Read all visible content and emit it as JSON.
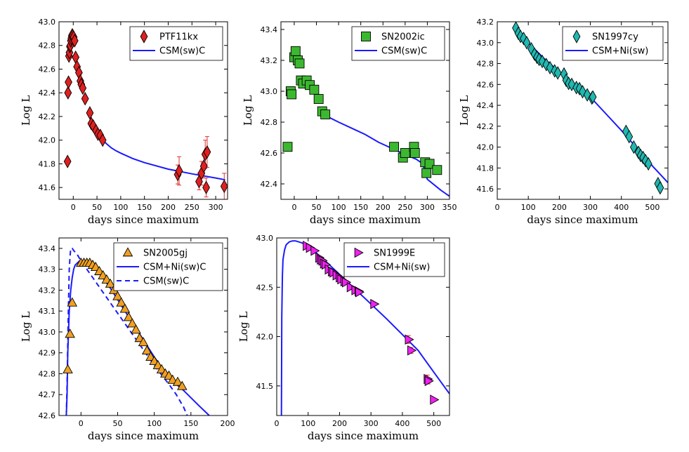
{
  "colors": {
    "model": "#1a1aff",
    "errorbar": "#e03030"
  },
  "chart_data": [
    {
      "type": "scatter",
      "id": "ptf11kx",
      "xlabel": "days since maximum",
      "ylabel": "Log L",
      "xlim": [
        -30,
        325
      ],
      "ylim": [
        41.5,
        43.0
      ],
      "xticks": [
        0,
        50,
        100,
        150,
        200,
        250,
        300
      ],
      "yticks": [
        41.6,
        41.8,
        42.0,
        42.2,
        42.4,
        42.6,
        42.8,
        43.0
      ],
      "ytick_decimals": 1,
      "legend_position": "top-right",
      "series": [
        {
          "name": "PTF11kx",
          "kind": "points",
          "marker": "diamond",
          "color": "#e02020",
          "x": [
            -12,
            -11,
            -10,
            -9,
            -8,
            -7,
            -6,
            -5,
            -4,
            -3,
            -2,
            -1,
            1,
            3,
            5,
            8,
            12,
            15,
            17,
            20,
            25,
            35,
            38,
            42,
            48,
            52,
            57,
            62,
            220,
            223,
            265,
            270,
            275,
            278,
            280,
            282,
            318
          ],
          "y": [
            41.82,
            42.4,
            42.49,
            42.71,
            42.74,
            42.79,
            42.8,
            42.84,
            42.86,
            42.88,
            42.89,
            42.88,
            42.87,
            42.84,
            42.7,
            42.62,
            42.57,
            42.5,
            42.47,
            42.44,
            42.35,
            42.23,
            42.14,
            42.12,
            42.08,
            42.05,
            42.04,
            42.0,
            41.71,
            41.74,
            41.65,
            41.72,
            41.78,
            41.88,
            41.6,
            41.9,
            41.61
          ],
          "yerr": [
            0,
            0,
            0,
            0,
            0,
            0,
            0,
            0,
            0,
            0,
            0,
            0,
            0,
            0,
            0,
            0,
            0,
            0,
            0,
            0,
            0,
            0,
            0,
            0,
            0,
            0,
            0,
            0,
            0.08,
            0.12,
            0.07,
            0.1,
            0.1,
            0.12,
            0.08,
            0.13,
            0.11
          ]
        },
        {
          "name": "CSM(sw)C",
          "kind": "line",
          "style": "solid",
          "color": "#1a1aff",
          "x": [
            62,
            70,
            80,
            90,
            100,
            125,
            150,
            200,
            250,
            300,
            320
          ],
          "y": [
            42.0,
            41.97,
            41.935,
            41.91,
            41.89,
            41.845,
            41.81,
            41.755,
            41.715,
            41.68,
            41.665
          ]
        }
      ]
    },
    {
      "type": "scatter",
      "id": "sn2002ic",
      "xlabel": "days since maximum",
      "ylabel": "Log L",
      "xlim": [
        -30,
        350
      ],
      "ylim": [
        42.3,
        43.45
      ],
      "xticks": [
        0,
        50,
        100,
        150,
        200,
        250,
        300,
        350
      ],
      "yticks": [
        42.4,
        42.6,
        42.8,
        43.0,
        43.2,
        43.4
      ],
      "ytick_decimals": 1,
      "legend_position": "top-right",
      "series": [
        {
          "name": "SN2002ic",
          "kind": "points",
          "marker": "square",
          "color": "#3cb830",
          "x": [
            -15,
            -8,
            -6,
            0,
            3,
            8,
            12,
            15,
            20,
            28,
            35,
            45,
            55,
            63,
            70,
            225,
            245,
            250,
            270,
            272,
            295,
            298,
            305,
            322
          ],
          "y": [
            42.64,
            43.0,
            42.98,
            43.22,
            43.26,
            43.2,
            43.18,
            43.07,
            43.05,
            43.07,
            43.04,
            43.01,
            42.95,
            42.87,
            42.85,
            42.64,
            42.57,
            42.6,
            42.64,
            42.6,
            42.54,
            42.47,
            42.53,
            42.49
          ],
          "yerr": []
        },
        {
          "name": "CSM(sw)C",
          "kind": "line",
          "style": "solid",
          "color": "#1a1aff",
          "x": [
            72,
            100,
            130,
            160,
            190,
            220,
            250,
            275,
            290,
            295,
            300,
            330,
            350
          ],
          "y": [
            42.84,
            42.8,
            42.76,
            42.72,
            42.67,
            42.63,
            42.59,
            42.56,
            42.53,
            42.47,
            42.43,
            42.36,
            42.32
          ]
        }
      ]
    },
    {
      "type": "scatter",
      "id": "sn1997cy",
      "xlabel": "days since maximum",
      "ylabel": "Log L",
      "xlim": [
        0,
        550
      ],
      "ylim": [
        41.5,
        43.2
      ],
      "xticks": [
        0,
        100,
        200,
        300,
        400,
        500
      ],
      "yticks": [
        41.6,
        41.8,
        42.0,
        42.2,
        42.4,
        42.6,
        42.8,
        43.0,
        43.2
      ],
      "ytick_decimals": 1,
      "legend_position": "top-right",
      "series": [
        {
          "name": "SN1997cy",
          "kind": "points",
          "marker": "diamond",
          "color": "#20b8b0",
          "x": [
            60,
            68,
            75,
            85,
            95,
            110,
            120,
            128,
            135,
            145,
            158,
            170,
            185,
            195,
            215,
            222,
            230,
            240,
            255,
            265,
            275,
            290,
            305,
            308,
            415,
            425,
            440,
            455,
            462,
            470,
            478,
            487,
            518,
            525
          ],
          "y": [
            43.14,
            43.09,
            43.06,
            43.04,
            43.0,
            42.94,
            42.89,
            42.86,
            42.84,
            42.82,
            42.79,
            42.76,
            42.73,
            42.71,
            42.7,
            42.64,
            42.61,
            42.6,
            42.57,
            42.56,
            42.53,
            42.5,
            42.47,
            42.48,
            42.15,
            42.1,
            42.0,
            41.95,
            41.92,
            41.9,
            41.87,
            41.84,
            41.65,
            41.61
          ],
          "yerr": []
        },
        {
          "name": "CSM+Ni(sw)",
          "kind": "line",
          "style": "solid",
          "color": "#1a1aff",
          "x": [
            60,
            100,
            150,
            200,
            250,
            300,
            350,
            400,
            450,
            500,
            550
          ],
          "y": [
            43.16,
            43.0,
            42.85,
            42.72,
            42.6,
            42.48,
            42.32,
            42.16,
            41.99,
            41.82,
            41.66
          ]
        }
      ]
    },
    {
      "type": "scatter",
      "id": "sn2005gj",
      "xlabel": "days since maximum",
      "ylabel": "Log L",
      "xlim": [
        -30,
        200
      ],
      "ylim": [
        42.6,
        43.45
      ],
      "xticks": [
        0,
        50,
        100,
        150,
        200
      ],
      "yticks": [
        42.6,
        42.7,
        42.8,
        42.9,
        43.0,
        43.1,
        43.2,
        43.3,
        43.4
      ],
      "ytick_decimals": 1,
      "legend_position": "top-right",
      "series": [
        {
          "name": "SN2005gj",
          "kind": "points",
          "marker": "triangle",
          "color": "#f0a020",
          "x": [
            -18,
            -15,
            -12,
            0,
            4,
            8,
            12,
            16,
            20,
            25,
            30,
            35,
            40,
            45,
            50,
            55,
            60,
            65,
            70,
            75,
            80,
            85,
            90,
            95,
            100,
            105,
            110,
            115,
            120,
            125,
            132,
            138
          ],
          "y": [
            42.82,
            42.99,
            43.14,
            43.33,
            43.33,
            43.33,
            43.33,
            43.32,
            43.31,
            43.29,
            43.27,
            43.25,
            43.23,
            43.2,
            43.17,
            43.14,
            43.11,
            43.07,
            43.04,
            43.01,
            42.97,
            42.95,
            42.91,
            42.88,
            42.86,
            42.84,
            42.82,
            42.8,
            42.79,
            42.77,
            42.76,
            42.74
          ],
          "yerr": []
        },
        {
          "name": "CSM+Ni(sw)C",
          "kind": "line",
          "style": "solid",
          "color": "#1a1aff",
          "x": [
            -20,
            -19,
            -18,
            -16,
            -14,
            -12,
            -10,
            -8,
            -5,
            -2,
            0,
            5,
            10,
            20,
            40,
            60,
            80,
            100,
            120,
            140,
            160,
            175
          ],
          "y": [
            42.6,
            42.7,
            42.9,
            43.1,
            43.2,
            43.26,
            43.3,
            43.32,
            43.33,
            43.34,
            43.34,
            43.34,
            43.33,
            43.31,
            43.21,
            43.1,
            42.99,
            42.88,
            42.78,
            42.72,
            42.65,
            42.6
          ]
        },
        {
          "name": "CSM(sw)C",
          "kind": "line",
          "style": "dashed",
          "color": "#1a1aff",
          "x": [
            -20,
            -19,
            -18,
            -17,
            -16,
            -15,
            -14,
            -12,
            -10,
            -5,
            0,
            20,
            40,
            60,
            80,
            100,
            120,
            130,
            140,
            145
          ],
          "y": [
            42.6,
            42.75,
            42.95,
            43.15,
            43.3,
            43.36,
            43.4,
            43.4,
            43.39,
            43.37,
            43.34,
            43.24,
            43.14,
            43.04,
            42.94,
            42.84,
            42.75,
            42.7,
            42.64,
            42.6
          ]
        }
      ]
    },
    {
      "type": "scatter",
      "id": "sn1999e",
      "xlabel": "days since maximum",
      "ylabel": "Log L",
      "xlim": [
        0,
        550
      ],
      "ylim": [
        41.2,
        43.0
      ],
      "xticks": [
        0,
        100,
        200,
        300,
        400,
        500
      ],
      "yticks": [
        41.5,
        42.0,
        42.5,
        43.0
      ],
      "ytick_decimals": 1,
      "legend_position": "top-right",
      "series": [
        {
          "name": "SN1999E",
          "kind": "points",
          "marker": "triangle-right",
          "color": "#f020f0",
          "x": [
            95,
            105,
            120,
            135,
            140,
            145,
            150,
            155,
            165,
            175,
            180,
            190,
            200,
            205,
            215,
            220,
            235,
            250,
            260,
            262,
            310,
            420,
            428,
            480,
            483,
            500
          ],
          "y": [
            42.92,
            42.9,
            42.87,
            42.8,
            42.78,
            42.77,
            42.74,
            42.73,
            42.68,
            42.66,
            42.65,
            42.62,
            42.6,
            42.58,
            42.56,
            42.55,
            42.5,
            42.47,
            42.46,
            42.45,
            42.33,
            41.97,
            41.86,
            41.57,
            41.55,
            41.36
          ],
          "yerr": [
            0,
            0,
            0,
            0,
            0,
            0,
            0,
            0,
            0,
            0,
            0,
            0,
            0,
            0,
            0,
            0,
            0,
            0,
            0,
            0,
            0,
            0.04,
            0.03,
            0.04,
            0.03,
            0
          ]
        },
        {
          "name": "CSM+Ni(sw)",
          "kind": "line",
          "style": "solid",
          "color": "#1a1aff",
          "x": [
            15,
            16,
            18,
            20,
            25,
            30,
            40,
            50,
            60,
            80,
            100,
            150,
            200,
            250,
            300,
            350,
            400,
            450,
            500,
            550
          ],
          "y": [
            41.2,
            42.2,
            42.62,
            42.78,
            42.88,
            42.93,
            42.96,
            42.97,
            42.97,
            42.95,
            42.92,
            42.78,
            42.63,
            42.48,
            42.33,
            42.18,
            42.02,
            41.86,
            41.64,
            41.42
          ]
        }
      ]
    }
  ]
}
